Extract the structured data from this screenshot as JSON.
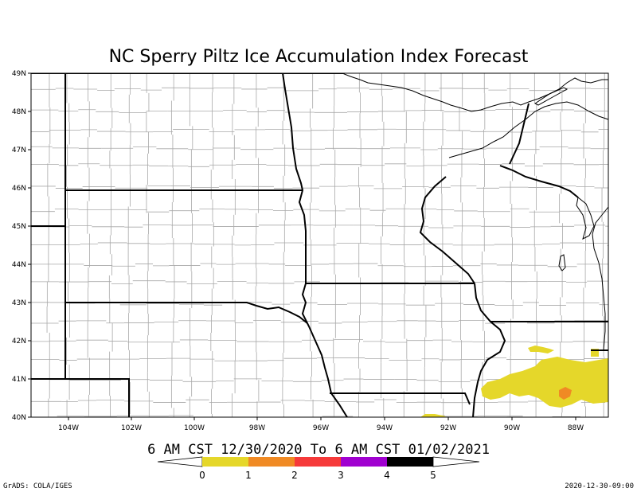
{
  "title": "NC Sperry Piltz Ice Accumulation Index Forecast",
  "valid_range": "6 AM CST 12/30/2020 To 6 AM CST 01/02/2021",
  "credit": "GrADS: COLA/IGES",
  "issued": "2020-12-30-09:00",
  "lat_labels": [
    "49N",
    "48N",
    "47N",
    "46N",
    "45N",
    "44N",
    "43N",
    "42N",
    "41N",
    "40N"
  ],
  "lon_labels": [
    "104W",
    "102W",
    "100W",
    "98W",
    "96W",
    "94W",
    "92W",
    "90W",
    "88W"
  ],
  "colorbar": {
    "labels": [
      "0",
      "1",
      "2",
      "3",
      "4",
      "5"
    ],
    "colors": [
      "#e5d72a",
      "#f08a24",
      "#f63a3a",
      "#a000d0",
      "#000000"
    ]
  },
  "colors": {
    "ice_index_1": "#e5d72a",
    "ice_index_2": "#f08a24"
  }
}
